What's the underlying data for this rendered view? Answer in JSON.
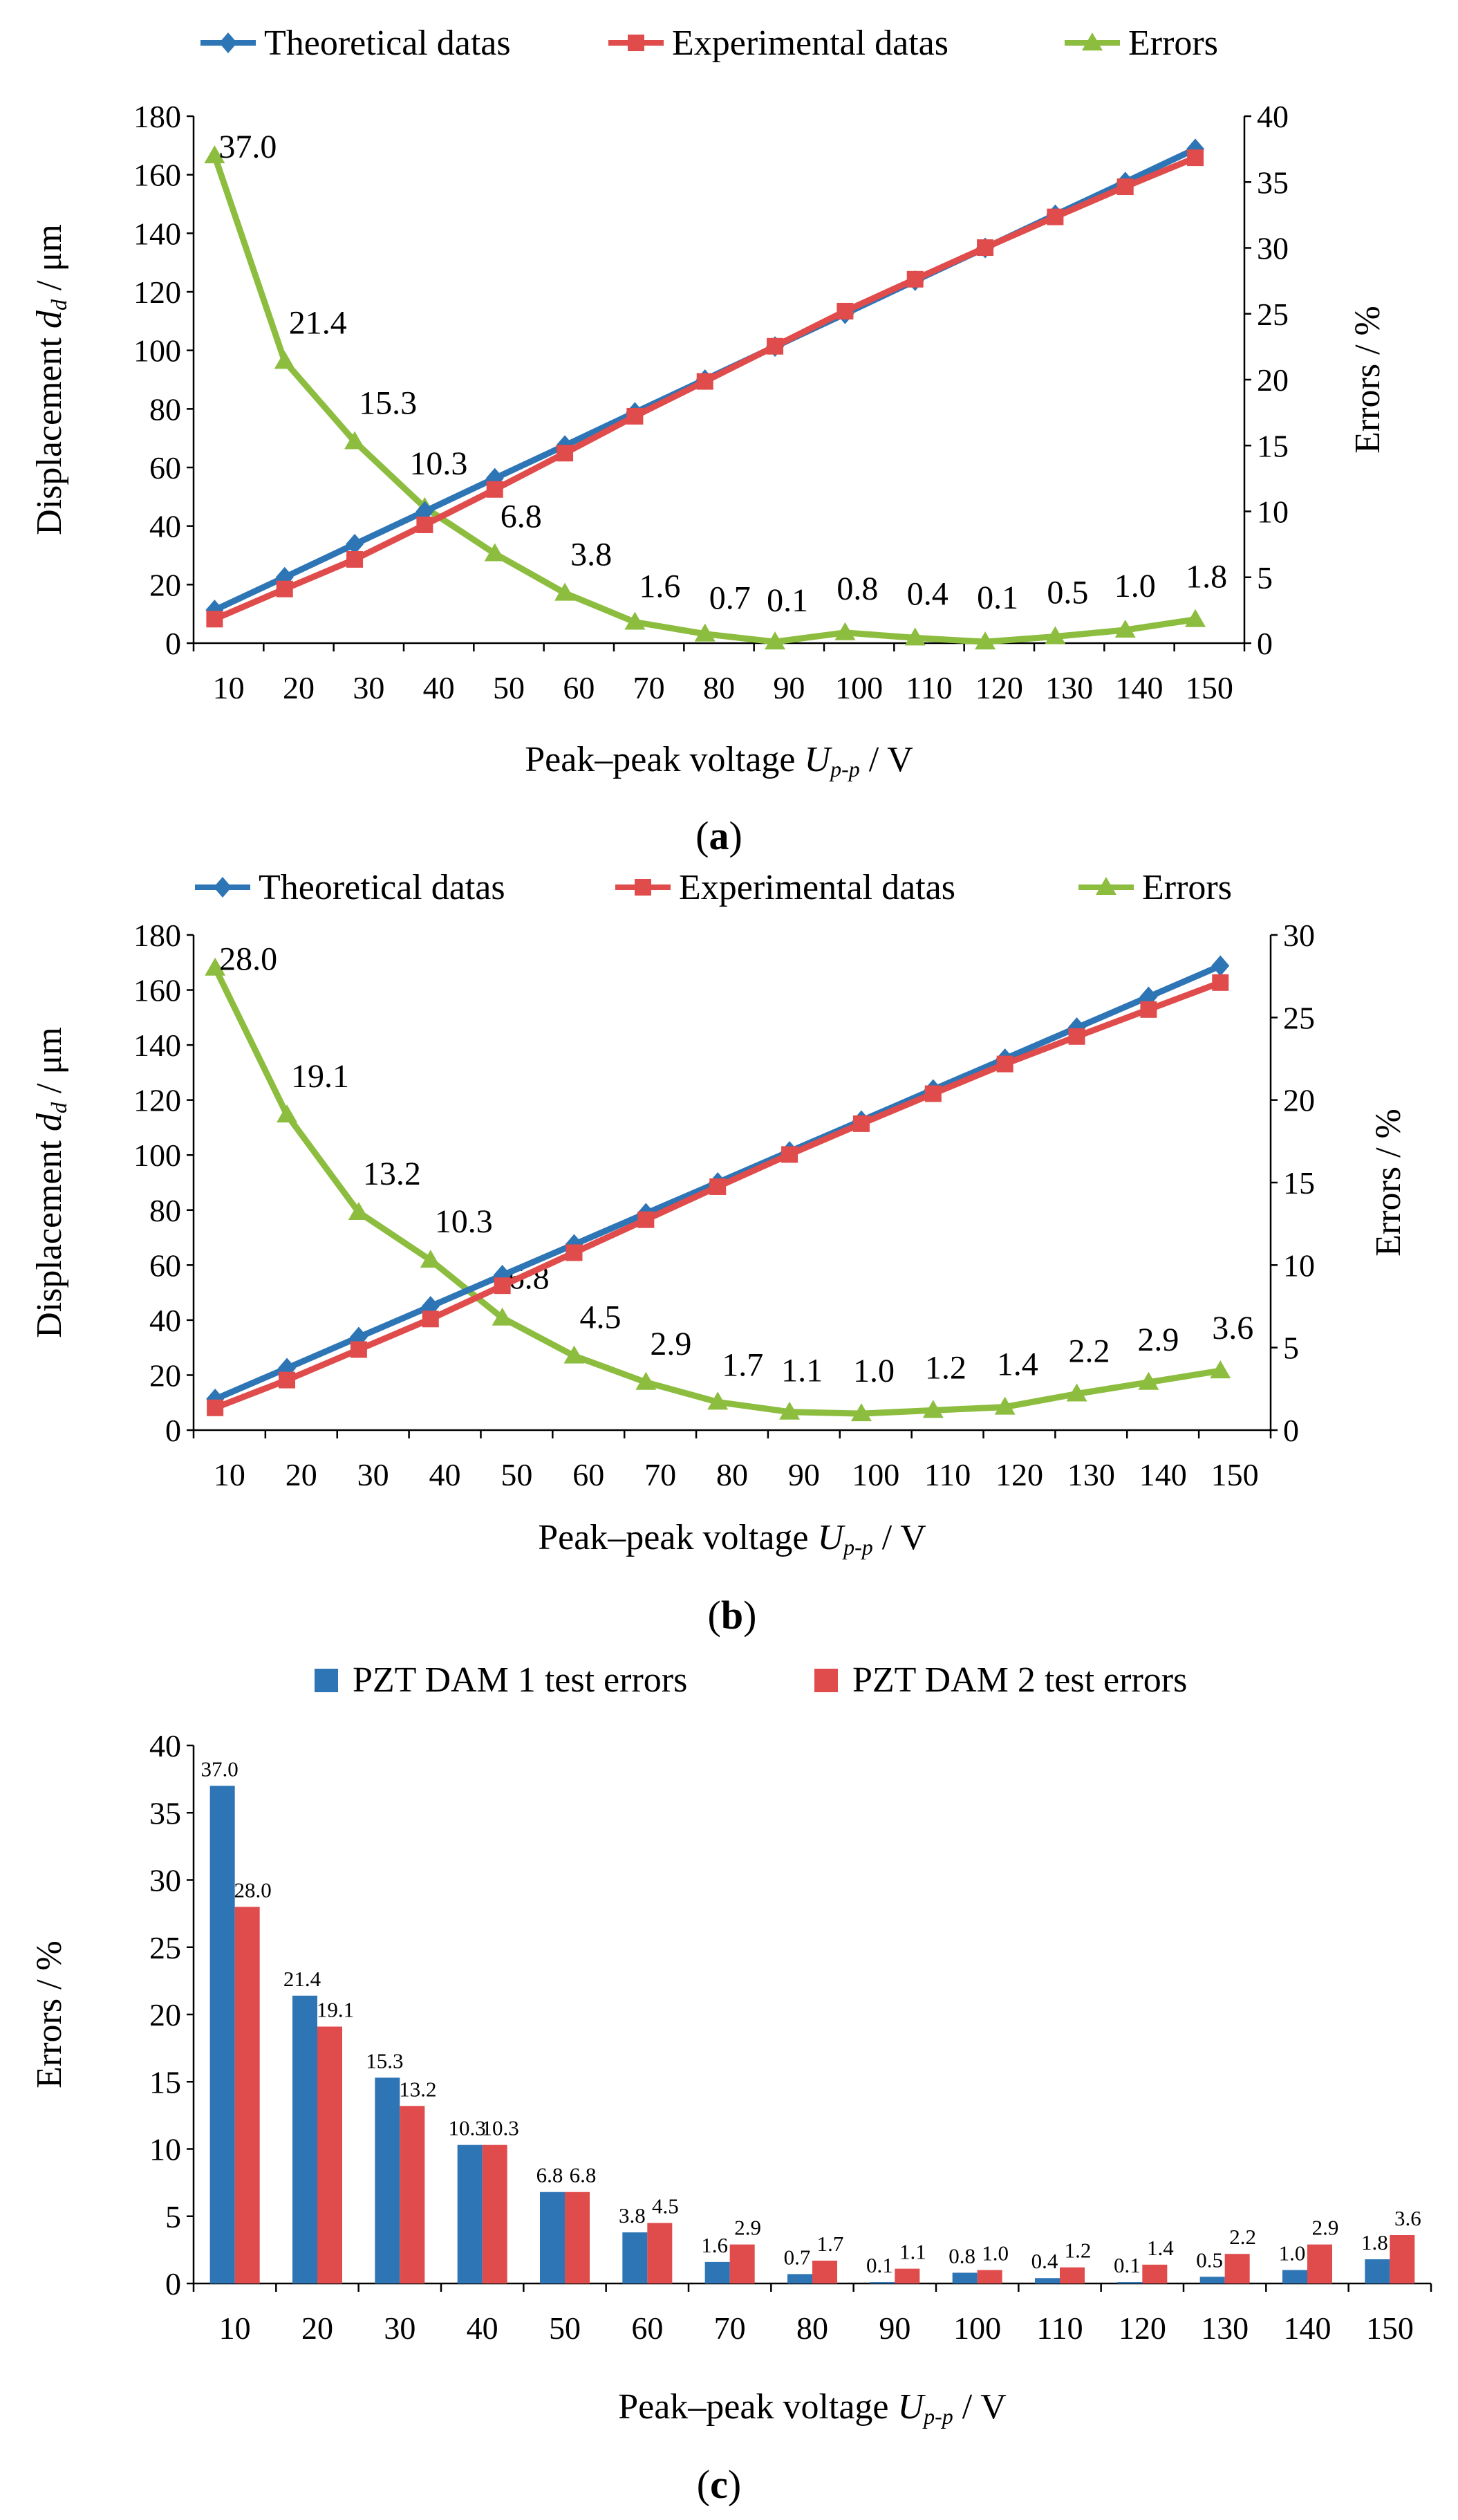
{
  "colors": {
    "theoretical": "#2e75b6",
    "experimental": "#e04b4b",
    "errors": "#8cbd3f",
    "dam1": "#2e75b6",
    "dam2": "#e04b4b"
  },
  "chart_data": [
    {
      "type": "line",
      "caption": "(a)",
      "caption_letter": "a",
      "x": [
        10,
        20,
        30,
        40,
        50,
        60,
        70,
        80,
        90,
        100,
        110,
        120,
        130,
        140,
        150
      ],
      "xlabel_text": "Peak–peak voltage ",
      "xlabel_var": "U",
      "xlabel_sub": "p-p",
      "xlabel_unit": " / V",
      "ylabel_text": "Displacement ",
      "ylabel_var": "d",
      "ylabel_sub": "d",
      "ylabel_unit": " / μm",
      "y2label": "Errors / %",
      "ylim": [
        0,
        180
      ],
      "ytick_step": 20,
      "y2lim": [
        0,
        40
      ],
      "y2tick_step": 5,
      "legend_position": "top",
      "series": [
        {
          "name": "Theoretical datas",
          "axis": "left",
          "color_key": "theoretical",
          "marker": "diamond",
          "values": [
            11.3,
            22.5,
            33.8,
            45.0,
            56.3,
            67.5,
            78.8,
            90.0,
            101.3,
            112.5,
            123.8,
            135.0,
            146.3,
            157.5,
            168.8
          ]
        },
        {
          "name": "Experimental datas",
          "axis": "left",
          "color_key": "experimental",
          "marker": "square",
          "values": [
            8.2,
            18.5,
            28.6,
            40.4,
            52.5,
            64.9,
            77.5,
            89.4,
            101.4,
            113.4,
            124.3,
            135.1,
            145.6,
            155.9,
            165.8
          ]
        },
        {
          "name": "Errors",
          "axis": "right",
          "color_key": "errors",
          "marker": "triangle",
          "values": [
            37.0,
            21.4,
            15.3,
            10.3,
            6.8,
            3.8,
            1.6,
            0.7,
            0.1,
            0.8,
            0.4,
            0.1,
            0.5,
            1.0,
            1.8
          ],
          "labels": [
            "37.0",
            "21.4",
            "15.3",
            "10.3",
            "6.8",
            "3.8",
            "1.6",
            "0.7",
            "0.1",
            "0.8",
            "0.4",
            "0.1",
            "0.5",
            "1.0",
            "1.8"
          ]
        }
      ]
    },
    {
      "type": "line",
      "caption": "(b)",
      "caption_letter": "b",
      "x": [
        10,
        20,
        30,
        40,
        50,
        60,
        70,
        80,
        90,
        100,
        110,
        120,
        130,
        140,
        150
      ],
      "xlabel_text": "Peak–peak voltage ",
      "xlabel_var": "U",
      "xlabel_sub": "p-p",
      "xlabel_unit": " / V",
      "ylabel_text": "Displacement ",
      "ylabel_var": "d",
      "ylabel_sub": "d",
      "ylabel_unit": " / μm",
      "y2label": "Errors / %",
      "ylim": [
        0,
        180
      ],
      "ytick_step": 20,
      "y2lim": [
        0,
        30
      ],
      "y2tick_step": 5,
      "legend_position": "top",
      "series": [
        {
          "name": "Theoretical datas",
          "axis": "left",
          "color_key": "theoretical",
          "marker": "diamond",
          "values": [
            11.3,
            22.5,
            33.8,
            45.0,
            56.3,
            67.5,
            78.8,
            90.0,
            101.3,
            112.5,
            123.8,
            135.0,
            146.3,
            157.5,
            168.8
          ]
        },
        {
          "name": "Experimental datas",
          "axis": "left",
          "color_key": "experimental",
          "marker": "square",
          "values": [
            8.1,
            18.2,
            29.3,
            40.4,
            52.5,
            64.5,
            76.5,
            88.5,
            100.2,
            111.4,
            122.3,
            133.1,
            143.1,
            152.9,
            162.7
          ]
        },
        {
          "name": "Errors",
          "axis": "right",
          "color_key": "errors",
          "marker": "triangle",
          "values": [
            28.0,
            19.1,
            13.2,
            10.3,
            6.8,
            4.5,
            2.9,
            1.7,
            1.1,
            1.0,
            1.2,
            1.4,
            2.2,
            2.9,
            3.6
          ],
          "labels": [
            "28.0",
            "19.1",
            "13.2",
            "10.3",
            "6.8",
            "4.5",
            "2.9",
            "1.7",
            "1.1",
            "1.0",
            "1.2",
            "1.4",
            "2.2",
            "2.9",
            "3.6"
          ]
        }
      ]
    },
    {
      "type": "bar",
      "caption": "(c)",
      "caption_letter": "c",
      "categories": [
        "10",
        "20",
        "30",
        "40",
        "50",
        "60",
        "70",
        "80",
        "90",
        "100",
        "110",
        "120",
        "130",
        "140",
        "150"
      ],
      "xlabel_text": "Peak–peak voltage ",
      "xlabel_var": "U",
      "xlabel_sub": "p-p",
      "xlabel_unit": " / V",
      "ylabel": "Errors / %",
      "ylim": [
        0,
        40
      ],
      "ytick_step": 5,
      "legend_position": "top",
      "series": [
        {
          "name": "PZT DAM 1 test errors",
          "color_key": "dam1",
          "values": [
            37.0,
            21.4,
            15.3,
            10.3,
            6.8,
            3.8,
            1.6,
            0.7,
            0.1,
            0.8,
            0.4,
            0.1,
            0.5,
            1.0,
            1.8
          ],
          "labels": [
            "37.0",
            "21.4",
            "15.3",
            "10.3",
            "6.8",
            "3.8",
            "1.6",
            "0.7",
            "0.1",
            "0.8",
            "0.4",
            "0.1",
            "0.5",
            "1.0",
            "1.8"
          ]
        },
        {
          "name": "PZT DAM 2 test errors",
          "color_key": "dam2",
          "values": [
            28.0,
            19.1,
            13.2,
            10.3,
            6.8,
            4.5,
            2.9,
            1.7,
            1.1,
            1.0,
            1.2,
            1.4,
            2.2,
            2.9,
            3.6
          ],
          "labels": [
            "28.0",
            "19.1",
            "13.2",
            "10.3",
            "6.8",
            "4.5",
            "2.9",
            "1.7",
            "1.1",
            "1.0",
            "1.2",
            "1.4",
            "2.2",
            "2.9",
            "3.6"
          ]
        }
      ]
    }
  ]
}
